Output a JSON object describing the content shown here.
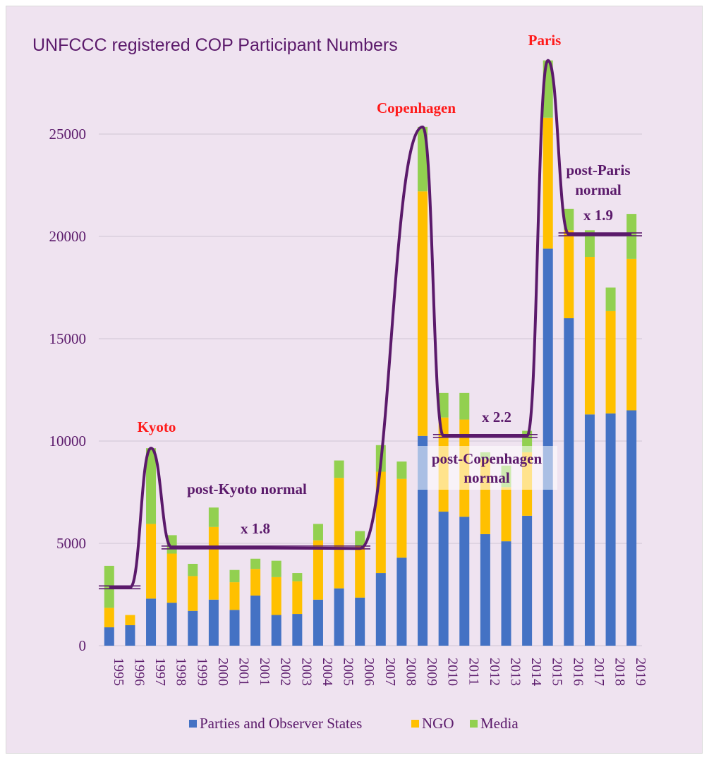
{
  "chart_data": {
    "type": "bar",
    "stacked": true,
    "title": "UNFCCC registered COP Participant Numbers",
    "xlabel": "",
    "ylabel": "",
    "ylim": [
      0,
      28500
    ],
    "yticks": [
      0,
      5000,
      10000,
      15000,
      20000,
      25000
    ],
    "grid": true,
    "legend_position": "bottom",
    "categories": [
      "1995",
      "1996",
      "1997",
      "1998",
      "1999",
      "2000",
      "2001",
      "2001",
      "2002",
      "2003",
      "2004",
      "2005",
      "2006",
      "2007",
      "2008",
      "2009",
      "2010",
      "2011",
      "2012",
      "2013",
      "2014",
      "2015",
      "2016",
      "2017",
      "2018",
      "2019"
    ],
    "series": [
      {
        "name": "Parties and Observer States",
        "color": "#4472c4",
        "values": [
          900,
          1000,
          2300,
          2100,
          1700,
          2250,
          1750,
          2450,
          1500,
          1550,
          2250,
          2800,
          2350,
          3550,
          4300,
          10250,
          6550,
          6300,
          5450,
          5100,
          6350,
          19400,
          16000,
          11300,
          11350,
          11500
        ]
      },
      {
        "name": "NGO",
        "color": "#ffc000",
        "values": [
          950,
          500,
          3650,
          2400,
          1700,
          3550,
          1350,
          1300,
          1850,
          1600,
          2900,
          5400,
          2500,
          4950,
          3850,
          11950,
          4600,
          4750,
          3650,
          2650,
          3100,
          6400,
          4300,
          7700,
          5000,
          7400
        ]
      },
      {
        "name": "Media",
        "color": "#92d050",
        "values": [
          2050,
          0,
          3700,
          900,
          600,
          950,
          600,
          500,
          800,
          400,
          800,
          850,
          750,
          1300,
          850,
          3150,
          1200,
          1300,
          350,
          1050,
          1050,
          2800,
          1050,
          1300,
          1150,
          2200
        ]
      }
    ],
    "annotations": {
      "kyoto": "Kyoto",
      "copenhagen": "Copenhagen",
      "paris": "Paris",
      "post_kyoto": "post-Kyoto normal",
      "x18": "x 1.8",
      "x22": "x 2.2",
      "post_copenhagen_1": "post-Copenhagen",
      "post_copenhagen_2": "normal",
      "post_paris_1": "post-Paris",
      "post_paris_2": "normal",
      "x19": "x 1.9"
    },
    "normal_levels": [
      {
        "from": "1995",
        "to": "1996",
        "value": 2850
      },
      {
        "from": "1998",
        "to": "2006",
        "value": 4800
      },
      {
        "from": "2010",
        "to": "2014",
        "value": 10250
      },
      {
        "from": "2016",
        "to": "2019",
        "value": 20100
      }
    ],
    "trend_line": [
      [
        "1995",
        2850
      ],
      [
        "1996",
        2850
      ],
      [
        "1997",
        9650
      ],
      [
        "1998",
        4800
      ],
      [
        "2006",
        4750
      ],
      [
        "2009",
        25350
      ],
      [
        "2010",
        10250
      ],
      [
        "2014",
        10250
      ],
      [
        "2015",
        28600
      ],
      [
        "2016",
        20100
      ],
      [
        "2019",
        20100
      ]
    ]
  }
}
